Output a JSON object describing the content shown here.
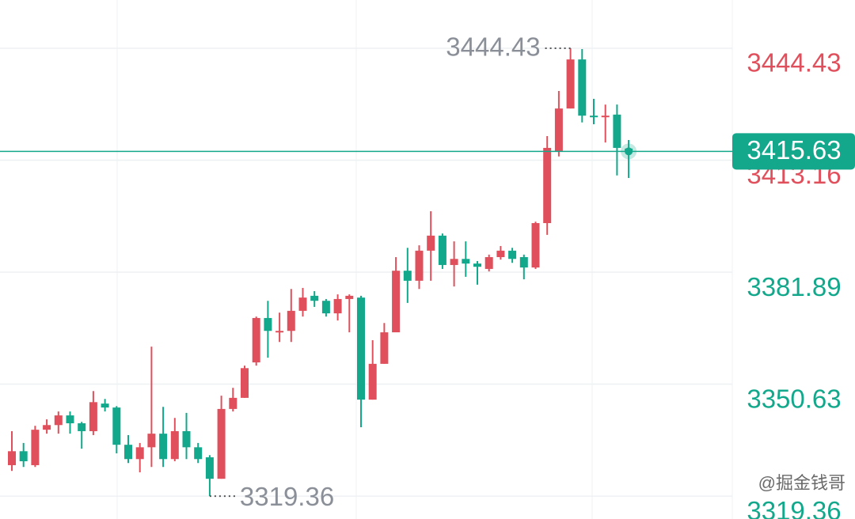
{
  "chart_data": {
    "type": "candlestick",
    "categories": [
      null,
      null,
      null,
      null,
      null,
      null,
      null,
      null,
      null,
      null,
      null,
      null,
      null,
      null,
      null,
      null,
      null,
      null,
      null,
      null,
      null,
      null,
      null,
      null,
      null,
      null,
      null,
      null,
      null,
      null,
      null,
      null,
      null,
      null,
      null,
      null,
      null,
      null,
      null,
      null,
      null,
      null,
      null,
      null,
      null,
      null,
      null,
      null,
      null,
      null,
      null,
      null,
      null,
      null
    ],
    "open": [
      3328.0,
      3331.9,
      3328.0,
      3337.9,
      3339.2,
      3341.9,
      3339.7,
      3337.5,
      3345.2,
      3344.1,
      3333.7,
      3329.7,
      3333.0,
      3336.8,
      3329.7,
      3337.5,
      3333.0,
      3330.2,
      3324.2,
      3343.7,
      3346.8,
      3356.7,
      3369.1,
      3365.1,
      3365.5,
      3371.1,
      3375.3,
      3373.9,
      3370.4,
      3374.4,
      3374.8,
      3346.3,
      3356.3,
      3365.1,
      3382.3,
      3379.5,
      3387.9,
      3392.1,
      3383.9,
      3385.6,
      3384.3,
      3382.8,
      3386.1,
      3387.9,
      3386.1,
      3383.2,
      3395.6,
      3415.5,
      3427.6,
      3441.3,
      3425.6,
      3425.4,
      3425.9,
      3416.4
    ],
    "high": [
      3337.5,
      3334.2,
      3339.0,
      3340.8,
      3343.0,
      3343.0,
      3340.1,
      3348.7,
      3346.5,
      3344.5,
      3336.4,
      3334.2,
      3361.1,
      3344.3,
      3341.2,
      3342.6,
      3334.2,
      3330.8,
      3347.4,
      3349.6,
      3355.8,
      3369.5,
      3373.9,
      3370.6,
      3377.2,
      3377.5,
      3376.6,
      3374.4,
      3375.7,
      3375.7,
      3375.3,
      3362.9,
      3367.7,
      3386.1,
      3388.7,
      3389.4,
      3398.9,
      3392.7,
      3390.5,
      3390.5,
      3385.0,
      3386.8,
      3389.2,
      3388.7,
      3386.8,
      3396.0,
      3419.9,
      3432.5,
      3444.43,
      3444.2,
      3430.3,
      3428.7,
      3428.7,
      3418.8
    ],
    "low": [
      3326.4,
      3327.5,
      3327.5,
      3336.8,
      3336.8,
      3336.8,
      3332.6,
      3336.4,
      3343.0,
      3331.3,
      3328.6,
      3326.0,
      3327.5,
      3327.5,
      3329.1,
      3329.7,
      3328.6,
      3319.36,
      3324.2,
      3343.0,
      3346.8,
      3355.8,
      3358.0,
      3362.4,
      3362.4,
      3369.5,
      3372.2,
      3369.5,
      3368.4,
      3365.1,
      3338.6,
      3346.3,
      3356.3,
      3365.1,
      3373.3,
      3377.2,
      3379.5,
      3382.8,
      3377.9,
      3380.6,
      3378.4,
      3382.1,
      3385.4,
      3384.5,
      3379.9,
      3382.8,
      3392.3,
      3414.2,
      3427.6,
      3423.7,
      3423.2,
      3418.1,
      3408.9,
      3408.2
    ],
    "close": [
      3331.9,
      3329.1,
      3337.9,
      3339.2,
      3341.9,
      3339.7,
      3337.5,
      3345.6,
      3344.1,
      3333.7,
      3329.7,
      3333.0,
      3336.8,
      3329.7,
      3337.5,
      3333.0,
      3329.7,
      3324.2,
      3343.7,
      3346.8,
      3355.1,
      3369.1,
      3365.5,
      3365.5,
      3371.1,
      3374.8,
      3373.9,
      3370.4,
      3374.4,
      3375.3,
      3346.3,
      3356.3,
      3365.1,
      3382.3,
      3379.5,
      3387.9,
      3392.1,
      3383.9,
      3385.6,
      3384.3,
      3383.4,
      3386.1,
      3387.9,
      3385.6,
      3383.2,
      3395.6,
      3416.6,
      3427.6,
      3441.3,
      3425.6,
      3425.2,
      3425.6,
      3416.6,
      3415.63
    ],
    "up_color": "#e0505c",
    "down_color": "#13a88b",
    "ylim": [
      3312.97,
      3457.9
    ],
    "yticks": [
      3444.43,
      3413.16,
      3381.89,
      3350.63,
      3319.36
    ],
    "ytick_colors": [
      "#e0505c",
      "#e0505c",
      "#13a88b",
      "#13a88b",
      "#13a88b"
    ],
    "grid": true,
    "watermark": "@掘金钱哥"
  }
}
